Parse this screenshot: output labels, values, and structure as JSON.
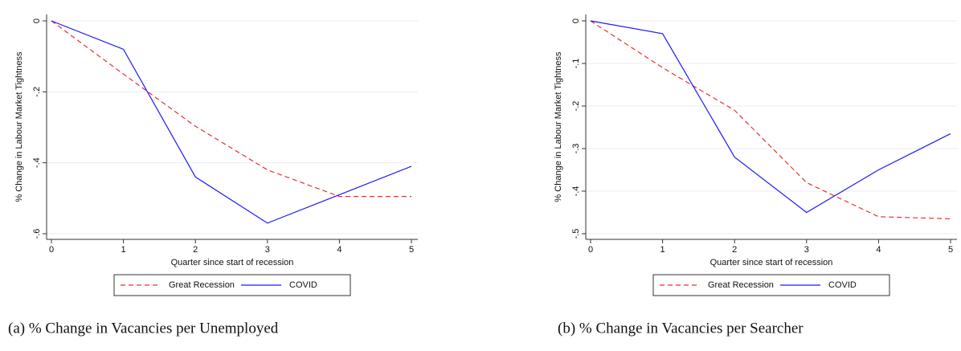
{
  "chart_data": [
    {
      "type": "line",
      "caption": "(a) % Change in Vacancies per Unemployed",
      "ylabel": "% Change in Labour Market Tightness",
      "xlabel": "Quarter since start of recession",
      "x": [
        0,
        1,
        2,
        3,
        4,
        5
      ],
      "xlim": [
        0,
        5
      ],
      "xticks": [
        0,
        1,
        2,
        3,
        4,
        5
      ],
      "ylim": [
        -0.6,
        0
      ],
      "yticks": [
        {
          "value": -0.6,
          "label": "-.6"
        },
        {
          "value": -0.4,
          "label": "-.4"
        },
        {
          "value": -0.2,
          "label": "-.2"
        },
        0
      ],
      "grid": true,
      "series": [
        {
          "name": "Great Recession",
          "color": "#e8312f",
          "dash": true,
          "values": [
            0,
            -0.15,
            -0.297,
            -0.42,
            -0.495,
            -0.495
          ]
        },
        {
          "name": "COVID",
          "color": "#1a1aff",
          "dash": false,
          "values": [
            0,
            -0.08,
            -0.44,
            -0.57,
            -0.49,
            -0.41
          ]
        }
      ]
    },
    {
      "type": "line",
      "caption": "(b) % Change in Vacancies per Searcher",
      "ylabel": "% Change in Labour Market Tightness",
      "xlabel": "Quarter since start of recession",
      "x": [
        0,
        1,
        2,
        3,
        4,
        5
      ],
      "xlim": [
        0,
        5
      ],
      "xticks": [
        0,
        1,
        2,
        3,
        4,
        5
      ],
      "ylim": [
        -0.5,
        0
      ],
      "yticks": [
        {
          "value": -0.5,
          "label": "-.5"
        },
        {
          "value": -0.4,
          "label": "-.4"
        },
        {
          "value": -0.3,
          "label": "-.3"
        },
        {
          "value": -0.2,
          "label": "-.2"
        },
        {
          "value": -0.1,
          "label": "-.1"
        },
        0
      ],
      "grid": true,
      "series": [
        {
          "name": "Great Recession",
          "color": "#e8312f",
          "dash": true,
          "values": [
            0,
            -0.11,
            -0.21,
            -0.38,
            -0.46,
            -0.465
          ]
        },
        {
          "name": "COVID",
          "color": "#1a1aff",
          "dash": false,
          "values": [
            0,
            -0.03,
            -0.32,
            -0.45,
            -0.35,
            -0.265
          ]
        }
      ]
    }
  ]
}
